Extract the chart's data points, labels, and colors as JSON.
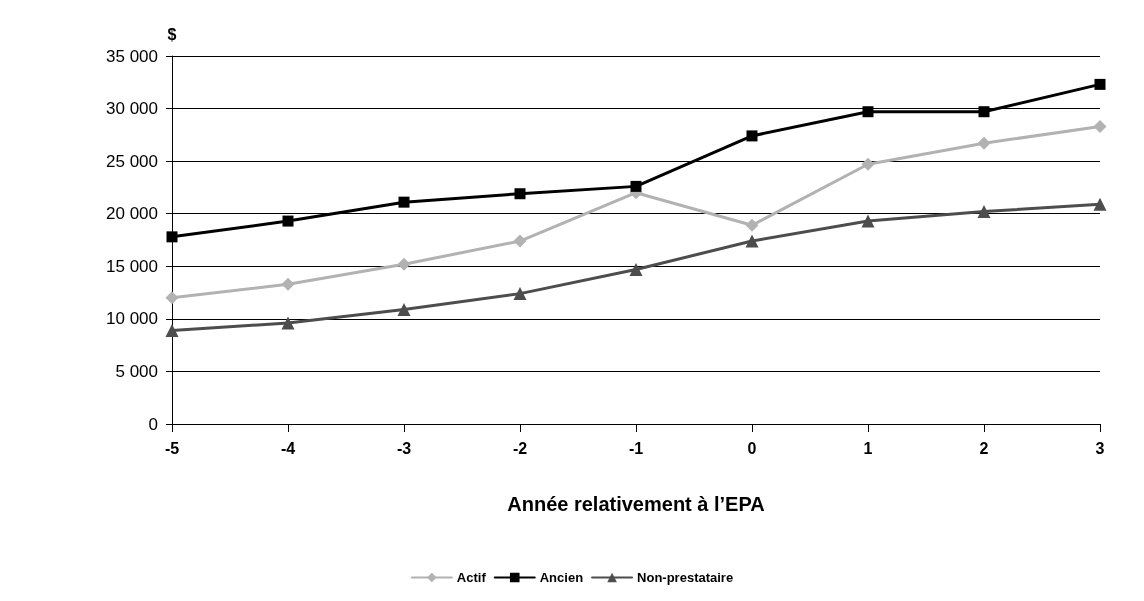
{
  "chart_data": {
    "type": "line",
    "xlabel": "Année relativement à l’EPA",
    "ylabel": "$",
    "categories": [
      "-5",
      "-4",
      "-3",
      "-2",
      "-1",
      "0",
      "1",
      "2",
      "3"
    ],
    "series": [
      {
        "name": "Actif",
        "color": "#b2b2b2",
        "marker": "diamond",
        "values": [
          12000,
          13300,
          15200,
          17400,
          22000,
          18900,
          24700,
          26700,
          28300
        ]
      },
      {
        "name": "Ancien",
        "color": "#000000",
        "marker": "square",
        "values": [
          17800,
          19300,
          21100,
          21900,
          22600,
          27400,
          29700,
          29700,
          32300
        ]
      },
      {
        "name": "Non-prestataire",
        "color": "#4d4d4d",
        "marker": "triangle",
        "values": [
          8900,
          9600,
          10900,
          12400,
          14700,
          17400,
          19300,
          20200,
          20900
        ]
      }
    ],
    "ylim": [
      0,
      35000
    ],
    "yticks": [
      {
        "value": 0,
        "label": "0"
      },
      {
        "value": 5000,
        "label": "5 000"
      },
      {
        "value": 10000,
        "label": "10 000"
      },
      {
        "value": 15000,
        "label": "15 000"
      },
      {
        "value": 20000,
        "label": "20 000"
      },
      {
        "value": 25000,
        "label": "25 000"
      },
      {
        "value": 30000,
        "label": "30 000"
      },
      {
        "value": 35000,
        "label": "35 000"
      }
    ],
    "grid": "y",
    "legend": "bottom",
    "line_style": "solid"
  }
}
